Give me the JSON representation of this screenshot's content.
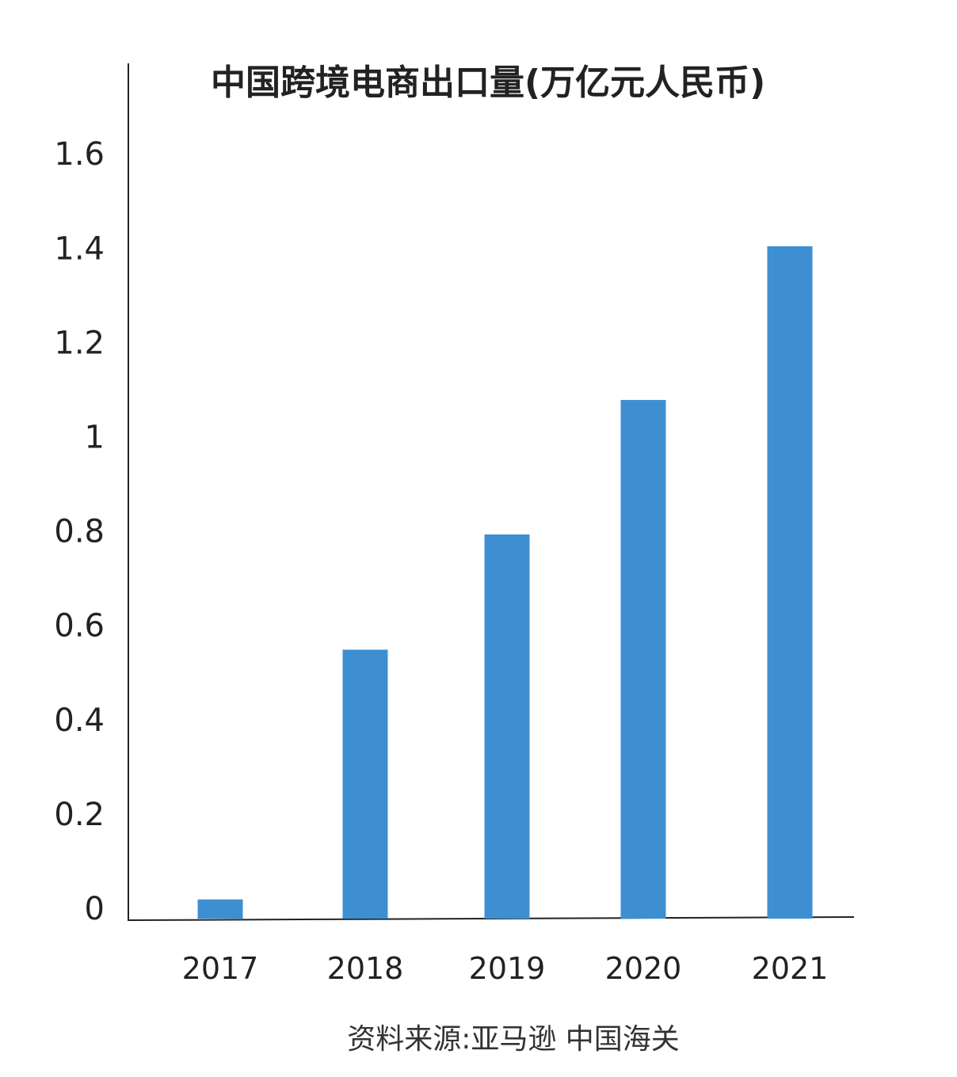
{
  "chart_data": {
    "type": "bar",
    "title": "中国跨境电商出口量(万亿元人民币)",
    "source": "资料来源:亚马逊 中国海关",
    "categories": [
      "2017",
      "2018",
      "2019",
      "2020",
      "2021"
    ],
    "values": [
      0.04,
      0.56,
      0.8,
      1.08,
      1.4
    ],
    "ylim": [
      0,
      1.6
    ],
    "yticks": [
      "0",
      "0.2",
      "0.4",
      "0.6",
      "0.8",
      "1",
      "1.2",
      "1.4",
      "1.6"
    ],
    "grid": false,
    "bar_color": "#3d8fd1"
  }
}
